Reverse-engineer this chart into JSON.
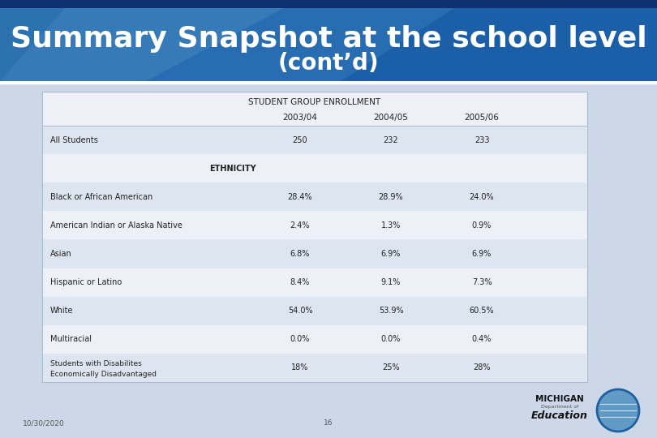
{
  "title_line1": "Summary Snapshot at the school level",
  "title_line2": "(cont’d)",
  "header_bg_color": "#1a5fa8",
  "header_dark_color": "#0d3070",
  "header_mid_color": "#2060a0",
  "header_light_color": "#4488cc",
  "slide_bg_color": "#ccd8e8",
  "table_bg_color": "#edf1f7",
  "table_border_color": "#aabbd0",
  "table_title": "STUDENT GROUP ENROLLMENT",
  "col_headers": [
    "2003/04",
    "2004/05",
    "2005/06"
  ],
  "rows": [
    {
      "label": "All Students",
      "values": [
        "250",
        "232",
        "233"
      ],
      "bold": false,
      "center_label": false
    },
    {
      "label": "ETHNICITY",
      "values": [
        "",
        "",
        ""
      ],
      "bold": true,
      "center_label": true
    },
    {
      "label": "Black or African American",
      "values": [
        "28.4%",
        "28.9%",
        "24.0%"
      ],
      "bold": false,
      "center_label": false
    },
    {
      "label": "American Indian or Alaska Native",
      "values": [
        "2.4%",
        "1.3%",
        "0.9%"
      ],
      "bold": false,
      "center_label": false
    },
    {
      "label": "Asian",
      "values": [
        "6.8%",
        "6.9%",
        "6.9%"
      ],
      "bold": false,
      "center_label": false
    },
    {
      "label": "Hispanic or Latino",
      "values": [
        "8.4%",
        "9.1%",
        "7.3%"
      ],
      "bold": false,
      "center_label": false
    },
    {
      "label": "White",
      "values": [
        "54.0%",
        "53.9%",
        "60.5%"
      ],
      "bold": false,
      "center_label": false
    },
    {
      "label": "Multiracial",
      "values": [
        "0.0%",
        "0.0%",
        "0.4%"
      ],
      "bold": false,
      "center_label": false
    },
    {
      "label": "Students with Disabilites\nEconomically Disadvantaged",
      "values": [
        "18%",
        "25%",
        "28%"
      ],
      "bold": false,
      "center_label": false,
      "multiline": true
    }
  ],
  "footer_date": "10/30/2020",
  "footer_page": "16",
  "title_font_size": 26,
  "subtitle_font_size": 20
}
